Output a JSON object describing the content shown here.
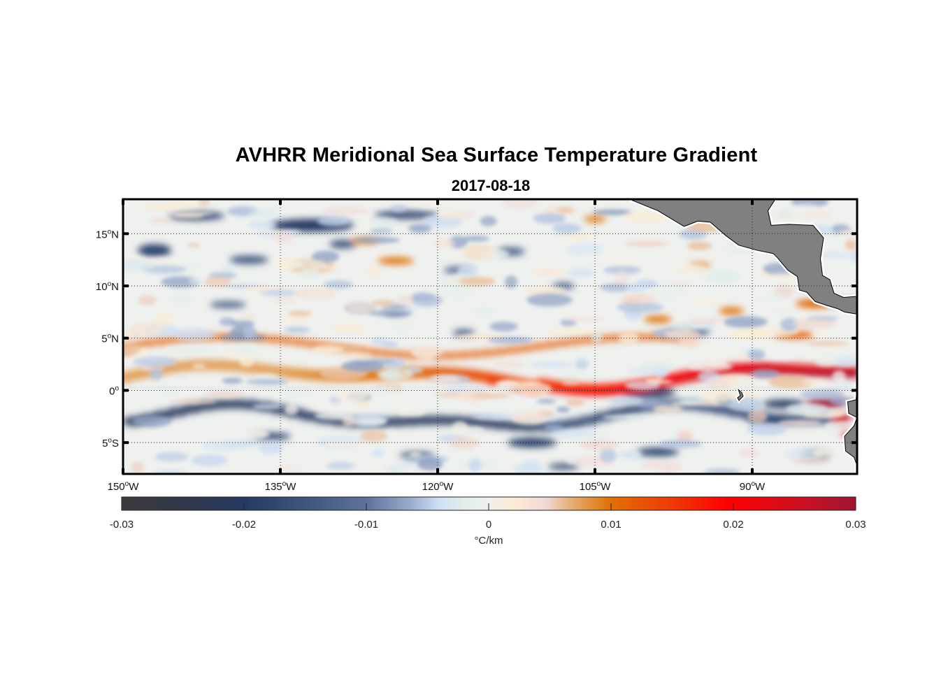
{
  "chart_data": {
    "type": "heatmap",
    "title": "AVHRR Meridional Sea Surface Temperature Gradient",
    "subtitle": "2017-08-18",
    "projection": "equirectangular",
    "lon_range": [
      -150,
      -80
    ],
    "lat_range": [
      -8,
      18.3
    ],
    "x_ticks": [
      {
        "value": -150,
        "label": "150",
        "suffix": "W"
      },
      {
        "value": -135,
        "label": "135",
        "suffix": "W"
      },
      {
        "value": -120,
        "label": "120",
        "suffix": "W"
      },
      {
        "value": -105,
        "label": "105",
        "suffix": "W"
      },
      {
        "value": -90,
        "label": "90",
        "suffix": "W"
      }
    ],
    "y_ticks": [
      {
        "value": 15,
        "label": "15",
        "suffix": "N"
      },
      {
        "value": 10,
        "label": "10",
        "suffix": "N"
      },
      {
        "value": 5,
        "label": "5",
        "suffix": "N"
      },
      {
        "value": 0,
        "label": "0",
        "suffix": ""
      },
      {
        "value": -5,
        "label": "5",
        "suffix": "S"
      }
    ],
    "grid": true,
    "grid_style": "dotted",
    "land_color": "#808080",
    "colorbar": {
      "orientation": "horizontal",
      "placement": "bottom",
      "range": [
        -0.03,
        0.03
      ],
      "ticks": [
        -0.03,
        -0.02,
        -0.01,
        0,
        0.01,
        0.02,
        0.03
      ],
      "tick_labels": [
        "-0.03",
        "-0.02",
        "-0.01",
        "0",
        "0.01",
        "0.02",
        "0.03"
      ],
      "label": "°C/km",
      "colormap": [
        {
          "value": -0.03,
          "color": "#3b3b3d"
        },
        {
          "value": -0.025,
          "color": "#323849"
        },
        {
          "value": -0.02,
          "color": "#253a63"
        },
        {
          "value": -0.015,
          "color": "#3f557e"
        },
        {
          "value": -0.01,
          "color": "#5e7299"
        },
        {
          "value": -0.0065,
          "color": "#98aacb"
        },
        {
          "value": -0.004,
          "color": "#cfe0f5"
        },
        {
          "value": -0.002,
          "color": "#e2eee8"
        },
        {
          "value": 0,
          "color": "#f0f0ef"
        },
        {
          "value": 0.002,
          "color": "#fbecd2"
        },
        {
          "value": 0.0045,
          "color": "#f0dbd9"
        },
        {
          "value": 0.007,
          "color": "#e4a96d"
        },
        {
          "value": 0.01,
          "color": "#e07000"
        },
        {
          "value": 0.015,
          "color": "#ee3a06"
        },
        {
          "value": 0.0195,
          "color": "#ff0000"
        },
        {
          "value": 0.025,
          "color": "#d0101e"
        },
        {
          "value": 0.03,
          "color": "#a01434"
        }
      ]
    },
    "features": [
      {
        "name": "Equatorial front (positive gradient band)",
        "lon_range": [
          -150,
          -80
        ],
        "lat_center_approx": 1.5,
        "peak_value": 0.03
      },
      {
        "name": "Negative gradient band south of equator",
        "lon_range": [
          -150,
          -95
        ],
        "lat_center_approx": -2.5,
        "min_value": -0.025
      },
      {
        "name": "Central America landmass",
        "lon_range": [
          -98,
          -80
        ],
        "lat_range": [
          7,
          18.3
        ]
      },
      {
        "name": "South America coast",
        "lon_range": [
          -81,
          -80
        ],
        "lat_range": [
          -8,
          0
        ]
      },
      {
        "name": "Galápagos Islands",
        "lon": -91,
        "lat": -0.5
      }
    ]
  }
}
